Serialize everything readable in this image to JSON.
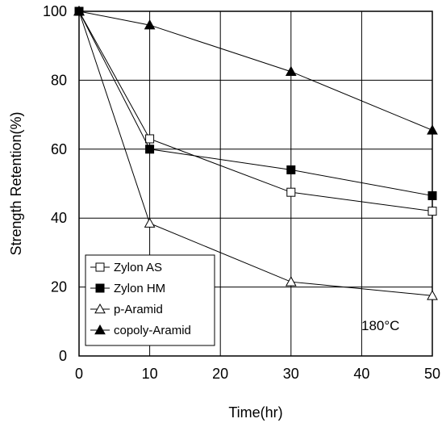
{
  "chart_data": {
    "type": "line",
    "xlabel": "Time(hr)",
    "ylabel": "Strength Retention(%)",
    "xlim": [
      0,
      50
    ],
    "ylim": [
      0,
      100
    ],
    "xticks": [
      "0",
      "10",
      "20",
      "30",
      "40",
      "50"
    ],
    "yticks": [
      "0",
      "20",
      "40",
      "60",
      "80",
      "100"
    ],
    "grid": true,
    "legend_position": "bottom-left",
    "annotation": "180°C",
    "series": [
      {
        "name": "Zylon AS",
        "marker": "square-open",
        "color": "#000000",
        "x": [
          0,
          10,
          30,
          50
        ],
        "y": [
          100,
          63,
          47.5,
          42
        ]
      },
      {
        "name": "Zylon HM",
        "marker": "square-filled",
        "color": "#000000",
        "x": [
          0,
          10,
          30,
          50
        ],
        "y": [
          100,
          60,
          54,
          46.5
        ]
      },
      {
        "name": "p-Aramid",
        "marker": "triangle-open",
        "color": "#000000",
        "x": [
          0,
          10,
          30,
          50
        ],
        "y": [
          100,
          38.5,
          21.5,
          17.5
        ]
      },
      {
        "name": "copoly-Aramid",
        "marker": "triangle-filled",
        "color": "#000000",
        "x": [
          0,
          10,
          30,
          50
        ],
        "y": [
          100,
          96,
          82.5,
          65.5
        ]
      }
    ]
  }
}
